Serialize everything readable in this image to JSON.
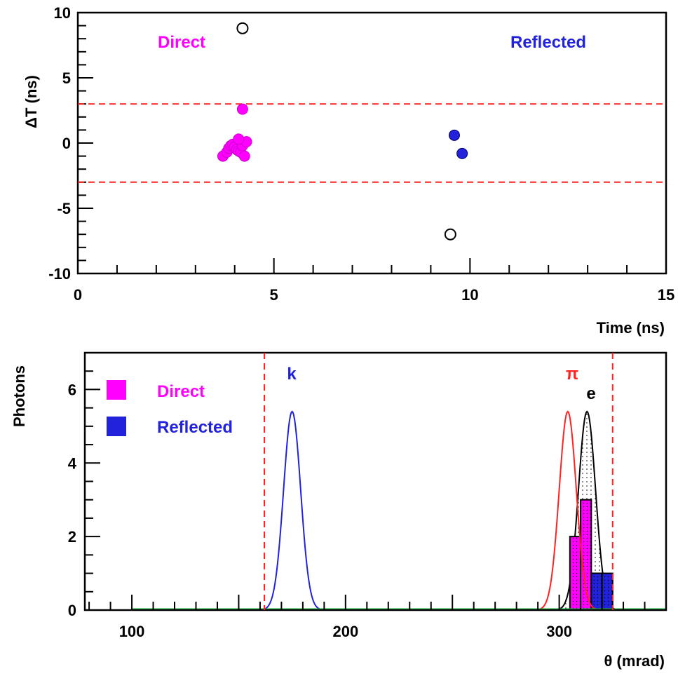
{
  "chart_data": [
    {
      "type": "scatter",
      "ylabel": "ΔT (ns)",
      "xlabel": "Time (ns)",
      "xlim": [
        0,
        15
      ],
      "ylim": [
        -10,
        10
      ],
      "xticks": [
        "0",
        "5",
        "10",
        "15"
      ],
      "yticks": [
        "10",
        "5",
        "0",
        "-5",
        "-10"
      ],
      "cut_lines": [
        3,
        -3
      ],
      "legend": [
        {
          "label": "Direct",
          "color": "#ff00ff"
        },
        {
          "label": "Reflected",
          "color": "#2222dd"
        }
      ],
      "series": [
        {
          "name": "Direct",
          "color": "#ff00ff",
          "x": [
            3.7,
            3.8,
            3.85,
            3.9,
            3.95,
            4.0,
            4.05,
            4.1,
            4.15,
            4.2,
            4.25,
            4.3,
            4.1,
            4.2
          ],
          "y": [
            -1.0,
            -0.7,
            -0.4,
            -0.2,
            -0.1,
            -0.3,
            -0.5,
            -0.6,
            -0.7,
            -0.2,
            -1.0,
            0.1,
            0.3,
            2.6
          ]
        },
        {
          "name": "Reflected",
          "color": "#2222dd",
          "x": [
            9.6,
            9.8
          ],
          "y": [
            0.6,
            -0.8
          ]
        },
        {
          "name": "Rejected",
          "color": "none",
          "x": [
            4.2,
            9.5
          ],
          "y": [
            8.8,
            -7.0
          ]
        }
      ]
    },
    {
      "type": "bar",
      "ylabel": "Photons",
      "xlabel": "θ (mrad)",
      "xlim": [
        78,
        350
      ],
      "ylim": [
        0,
        7
      ],
      "xticks": [
        "100",
        "200",
        "300"
      ],
      "yticks": [
        "0",
        "2",
        "4",
        "6"
      ],
      "cut_lines": [
        162,
        325
      ],
      "legend": [
        {
          "label": "Direct",
          "color": "#ff00ff"
        },
        {
          "label": "Reflected",
          "color": "#2222dd"
        }
      ],
      "hypotheses": [
        {
          "label": "k",
          "color": "#2222dd",
          "mean": 175,
          "sigma": 4,
          "height": 5.4
        },
        {
          "label": "π",
          "color": "#ff2222",
          "mean": 304,
          "sigma": 4,
          "height": 5.4
        },
        {
          "label": "e",
          "color": "#000000",
          "mean": 313,
          "sigma": 4,
          "height": 5.4
        }
      ],
      "bin_width": 5,
      "series": [
        {
          "name": "Direct",
          "color": "#ff00ff",
          "bins": [
            305,
            310,
            315
          ],
          "values": [
            2,
            3,
            1
          ]
        },
        {
          "name": "Reflected",
          "color": "#2222dd",
          "bins": [
            315,
            320
          ],
          "values": [
            1,
            1
          ]
        }
      ]
    }
  ]
}
